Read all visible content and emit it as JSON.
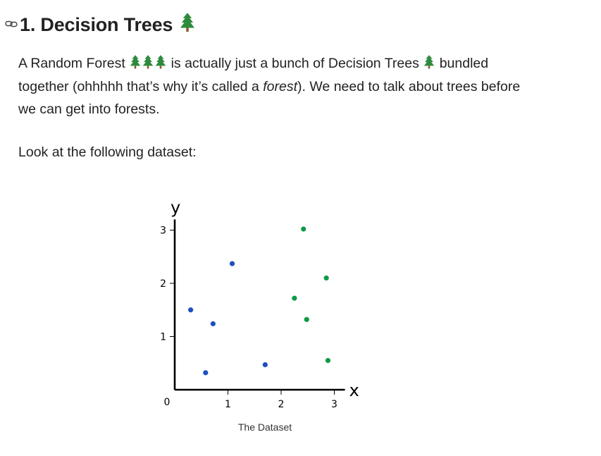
{
  "heading": {
    "text": "1. Decision Trees"
  },
  "intro": {
    "part1": "A Random Forest",
    "part2": "is actually just a bunch of Decision Trees",
    "part3": "bundled together (ohhhhh that’s why it’s called a",
    "emphasis": "forest",
    "part4": "). We need to talk about trees before we can get into forests."
  },
  "prompt": "Look at the following dataset:",
  "icons": {
    "heading": "link-icon",
    "tree": "evergreen-tree-icon"
  },
  "colors": {
    "blue": "#1f4fbf",
    "green": "#0e9a47",
    "text": "#222222"
  },
  "chart_data": {
    "type": "scatter",
    "xlabel": "x",
    "ylabel": "y",
    "xlim": [
      0,
      3.2
    ],
    "ylim": [
      0,
      3.2
    ],
    "x_ticks": [
      1,
      2,
      3
    ],
    "y_ticks": [
      1,
      2,
      3
    ],
    "origin_label": "0",
    "grid": false,
    "caption": "The Dataset",
    "series": [
      {
        "color": "#1f4fbf",
        "points": [
          [
            0.3,
            1.5
          ],
          [
            0.72,
            1.24
          ],
          [
            1.08,
            2.37
          ],
          [
            0.58,
            0.32
          ],
          [
            1.7,
            0.47
          ]
        ]
      },
      {
        "color": "#0e9a47",
        "points": [
          [
            2.42,
            3.02
          ],
          [
            2.25,
            1.72
          ],
          [
            2.85,
            2.1
          ],
          [
            2.48,
            1.32
          ],
          [
            2.88,
            0.55
          ]
        ]
      }
    ]
  }
}
